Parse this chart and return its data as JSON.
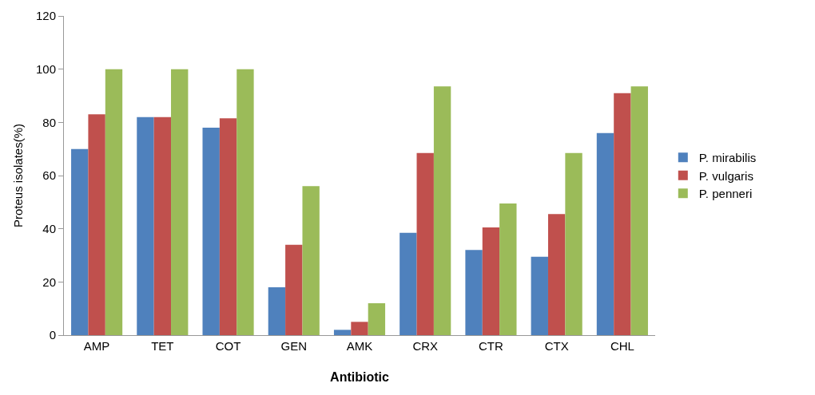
{
  "chart_data": {
    "type": "bar",
    "xlabel": "Antibiotic",
    "ylabel": "Proteus isolates(%)",
    "categories": [
      "AMP",
      "TET",
      "COT",
      "GEN",
      "AMK",
      "CRX",
      "CTR",
      "CTX",
      "CHL"
    ],
    "series": [
      {
        "name": "P. mirabilis",
        "color": "#4f81bd",
        "values": [
          70,
          82,
          78,
          18,
          2,
          38.5,
          32,
          29.5,
          76
        ]
      },
      {
        "name": "P. vulgaris",
        "color": "#c0504d",
        "values": [
          83,
          82,
          81.5,
          34,
          5,
          68.5,
          40.5,
          45.5,
          91
        ]
      },
      {
        "name": "P. penneri",
        "color": "#9bbb59",
        "values": [
          100,
          100,
          100,
          56,
          12,
          93.5,
          49.5,
          68.5,
          93.5
        ]
      }
    ],
    "ylim": [
      0,
      120
    ],
    "yticks": [
      0,
      20,
      40,
      60,
      80,
      100,
      120
    ],
    "grid": false,
    "legend": "right"
  }
}
